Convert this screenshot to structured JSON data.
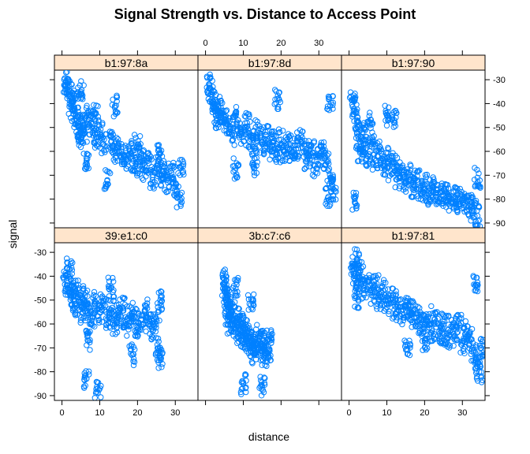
{
  "chart_data": {
    "type": "scatter",
    "title": "Signal Strength vs. Distance to Access Point",
    "xlabel": "distance",
    "ylabel": "signal",
    "xlim": [
      -2,
      36
    ],
    "ylim": [
      -92,
      -26
    ],
    "x_ticks": [
      0,
      10,
      20,
      30
    ],
    "y_ticks": [
      -90,
      -80,
      -70,
      -60,
      -50,
      -40,
      -30
    ],
    "strip_color": "#ffe5cc",
    "point_color": "#0080ff",
    "grid": false,
    "layout": "2 rows x 3 columns",
    "panels": [
      {
        "label": "b1:97:8a",
        "points": [
          [
            1.0,
            -31
          ],
          [
            1.5,
            -33
          ],
          [
            2.0,
            -36
          ],
          [
            2.5,
            -40
          ],
          [
            3.0,
            -43
          ],
          [
            3.5,
            -38
          ],
          [
            4.0,
            -47
          ],
          [
            4.5,
            -50
          ],
          [
            5.0,
            -55
          ],
          [
            5.5,
            -48
          ],
          [
            6.0,
            -52
          ],
          [
            6.5,
            -64
          ],
          [
            7.0,
            -45
          ],
          [
            8.0,
            -50
          ],
          [
            9.0,
            -54
          ],
          [
            10.0,
            -52
          ],
          [
            11.0,
            -57
          ],
          [
            12.0,
            -72
          ],
          [
            13.0,
            -56
          ],
          [
            14.0,
            -60
          ],
          [
            15.0,
            -58
          ],
          [
            16.0,
            -61
          ],
          [
            17.0,
            -63
          ],
          [
            18.0,
            -60
          ],
          [
            19.0,
            -64
          ],
          [
            20.0,
            -66
          ],
          [
            21.0,
            -62
          ],
          [
            22.0,
            -68
          ],
          [
            23.0,
            -65
          ],
          [
            24.0,
            -72
          ],
          [
            25.0,
            -66
          ],
          [
            26.0,
            -70
          ],
          [
            27.0,
            -68
          ],
          [
            28.0,
            -73
          ],
          [
            29.0,
            -69
          ],
          [
            30.0,
            -75
          ],
          [
            31.0,
            -79
          ],
          [
            31.5,
            -67
          ],
          [
            14.0,
            -41
          ],
          [
            5.0,
            -35
          ],
          [
            9.0,
            -44
          ],
          [
            20.0,
            -57
          ],
          [
            26.0,
            -61
          ]
        ]
      },
      {
        "label": "b1:97:8d",
        "points": [
          [
            1.0,
            -32
          ],
          [
            1.5,
            -36
          ],
          [
            2.0,
            -39
          ],
          [
            2.5,
            -43
          ],
          [
            3.0,
            -46
          ],
          [
            3.5,
            -41
          ],
          [
            4.0,
            -44
          ],
          [
            5.0,
            -47
          ],
          [
            6.0,
            -49
          ],
          [
            7.0,
            -53
          ],
          [
            8.0,
            -45
          ],
          [
            9.0,
            -50
          ],
          [
            10.0,
            -54
          ],
          [
            11.0,
            -48
          ],
          [
            12.0,
            -55
          ],
          [
            13.0,
            -58
          ],
          [
            14.0,
            -51
          ],
          [
            15.0,
            -57
          ],
          [
            16.0,
            -53
          ],
          [
            17.0,
            -59
          ],
          [
            18.0,
            -56
          ],
          [
            19.0,
            -61
          ],
          [
            20.0,
            -55
          ],
          [
            21.0,
            -60
          ],
          [
            22.0,
            -57
          ],
          [
            23.0,
            -62
          ],
          [
            24.0,
            -59
          ],
          [
            25.0,
            -55
          ],
          [
            26.0,
            -60
          ],
          [
            27.0,
            -63
          ],
          [
            28.0,
            -58
          ],
          [
            29.0,
            -66
          ],
          [
            30.0,
            -62
          ],
          [
            31.0,
            -59
          ],
          [
            32.0,
            -64
          ],
          [
            33.0,
            -71
          ],
          [
            34.0,
            -76
          ],
          [
            32.5,
            -79
          ],
          [
            8.0,
            -67
          ],
          [
            13.0,
            -67
          ],
          [
            19.0,
            -38
          ],
          [
            33.0,
            -41
          ]
        ]
      },
      {
        "label": "b1:97:90",
        "points": [
          [
            1.0,
            -38
          ],
          [
            1.5,
            -43
          ],
          [
            2.0,
            -48
          ],
          [
            2.5,
            -55
          ],
          [
            3.0,
            -60
          ],
          [
            3.5,
            -52
          ],
          [
            4.0,
            -57
          ],
          [
            5.0,
            -62
          ],
          [
            5.5,
            -48
          ],
          [
            6.0,
            -58
          ],
          [
            7.0,
            -64
          ],
          [
            8.0,
            -60
          ],
          [
            9.0,
            -66
          ],
          [
            10.0,
            -63
          ],
          [
            11.0,
            -68
          ],
          [
            12.0,
            -65
          ],
          [
            13.0,
            -71
          ],
          [
            14.0,
            -68
          ],
          [
            15.0,
            -73
          ],
          [
            16.0,
            -70
          ],
          [
            17.0,
            -75
          ],
          [
            18.0,
            -72
          ],
          [
            19.0,
            -76
          ],
          [
            20.0,
            -74
          ],
          [
            21.0,
            -78
          ],
          [
            22.0,
            -75
          ],
          [
            23.0,
            -79
          ],
          [
            24.0,
            -77
          ],
          [
            25.0,
            -80
          ],
          [
            26.0,
            -78
          ],
          [
            27.0,
            -81
          ],
          [
            28.0,
            -79
          ],
          [
            29.0,
            -82
          ],
          [
            30.0,
            -80
          ],
          [
            31.0,
            -83
          ],
          [
            32.0,
            -81
          ],
          [
            33.0,
            -85
          ],
          [
            34.0,
            -87
          ],
          [
            1.5,
            -80
          ],
          [
            10.0,
            -45
          ],
          [
            12.0,
            -47
          ],
          [
            34.0,
            -71
          ]
        ]
      },
      {
        "label": "39:e1:c0",
        "points": [
          [
            1.0,
            -40
          ],
          [
            1.5,
            -44
          ],
          [
            2.0,
            -37
          ],
          [
            2.5,
            -47
          ],
          [
            3.0,
            -50
          ],
          [
            3.5,
            -45
          ],
          [
            4.0,
            -52
          ],
          [
            5.0,
            -48
          ],
          [
            5.5,
            -55
          ],
          [
            6.0,
            -50
          ],
          [
            6.5,
            -83
          ],
          [
            7.0,
            -53
          ],
          [
            8.0,
            -57
          ],
          [
            9.0,
            -51
          ],
          [
            9.5,
            -87
          ],
          [
            10.0,
            -55
          ],
          [
            11.0,
            -52
          ],
          [
            12.0,
            -58
          ],
          [
            13.0,
            -54
          ],
          [
            14.0,
            -60
          ],
          [
            15.0,
            -56
          ],
          [
            16.0,
            -53
          ],
          [
            17.0,
            -61
          ],
          [
            18.0,
            -57
          ],
          [
            18.5,
            -73
          ],
          [
            19.0,
            -55
          ],
          [
            20.0,
            -62
          ],
          [
            21.0,
            -58
          ],
          [
            22.0,
            -54
          ],
          [
            23.0,
            -60
          ],
          [
            24.0,
            -63
          ],
          [
            25.0,
            -58
          ],
          [
            25.5,
            -70
          ],
          [
            26.0,
            -74
          ],
          [
            26.0,
            -50
          ],
          [
            7.0,
            -67
          ],
          [
            13.0,
            -45
          ]
        ]
      },
      {
        "label": "3b:c7:c6",
        "points": [
          [
            5.0,
            -41
          ],
          [
            5.2,
            -45
          ],
          [
            5.5,
            -49
          ],
          [
            5.8,
            -53
          ],
          [
            6.0,
            -56
          ],
          [
            6.3,
            -51
          ],
          [
            6.6,
            -60
          ],
          [
            7.0,
            -55
          ],
          [
            7.4,
            -58
          ],
          [
            8.0,
            -62
          ],
          [
            8.5,
            -57
          ],
          [
            9.0,
            -64
          ],
          [
            9.5,
            -60
          ],
          [
            10.0,
            -66
          ],
          [
            10.5,
            -62
          ],
          [
            11.0,
            -68
          ],
          [
            11.5,
            -64
          ],
          [
            12.0,
            -70
          ],
          [
            12.5,
            -66
          ],
          [
            13.0,
            -72
          ],
          [
            13.5,
            -68
          ],
          [
            14.0,
            -64
          ],
          [
            14.5,
            -71
          ],
          [
            15.0,
            -66
          ],
          [
            15.5,
            -74
          ],
          [
            16.0,
            -69
          ],
          [
            16.5,
            -72
          ],
          [
            17.0,
            -67
          ],
          [
            10.0,
            -85
          ],
          [
            15.0,
            -86
          ],
          [
            8.0,
            -45
          ],
          [
            12.0,
            -52
          ]
        ]
      },
      {
        "label": "b1:97:81",
        "points": [
          [
            1.0,
            -36
          ],
          [
            1.5,
            -40
          ],
          [
            2.0,
            -33
          ],
          [
            2.5,
            -43
          ],
          [
            3.0,
            -38
          ],
          [
            4.0,
            -45
          ],
          [
            5.0,
            -42
          ],
          [
            6.0,
            -48
          ],
          [
            7.0,
            -44
          ],
          [
            8.0,
            -50
          ],
          [
            9.0,
            -46
          ],
          [
            10.0,
            -52
          ],
          [
            11.0,
            -48
          ],
          [
            12.0,
            -54
          ],
          [
            13.0,
            -50
          ],
          [
            14.0,
            -56
          ],
          [
            15.0,
            -52
          ],
          [
            15.5,
            -69
          ],
          [
            16.0,
            -58
          ],
          [
            17.0,
            -54
          ],
          [
            18.0,
            -60
          ],
          [
            19.0,
            -56
          ],
          [
            20.0,
            -62
          ],
          [
            21.0,
            -57
          ],
          [
            22.0,
            -63
          ],
          [
            23.0,
            -59
          ],
          [
            24.0,
            -64
          ],
          [
            25.0,
            -60
          ],
          [
            26.0,
            -66
          ],
          [
            27.0,
            -61
          ],
          [
            28.0,
            -65
          ],
          [
            29.0,
            -60
          ],
          [
            30.0,
            -68
          ],
          [
            31.0,
            -63
          ],
          [
            32.0,
            -66
          ],
          [
            33.0,
            -72
          ],
          [
            34.0,
            -76
          ],
          [
            34.5,
            -80
          ],
          [
            35.0,
            -70
          ],
          [
            33.5,
            -44
          ],
          [
            2.0,
            -49
          ],
          [
            20.0,
            -67
          ]
        ]
      }
    ]
  }
}
